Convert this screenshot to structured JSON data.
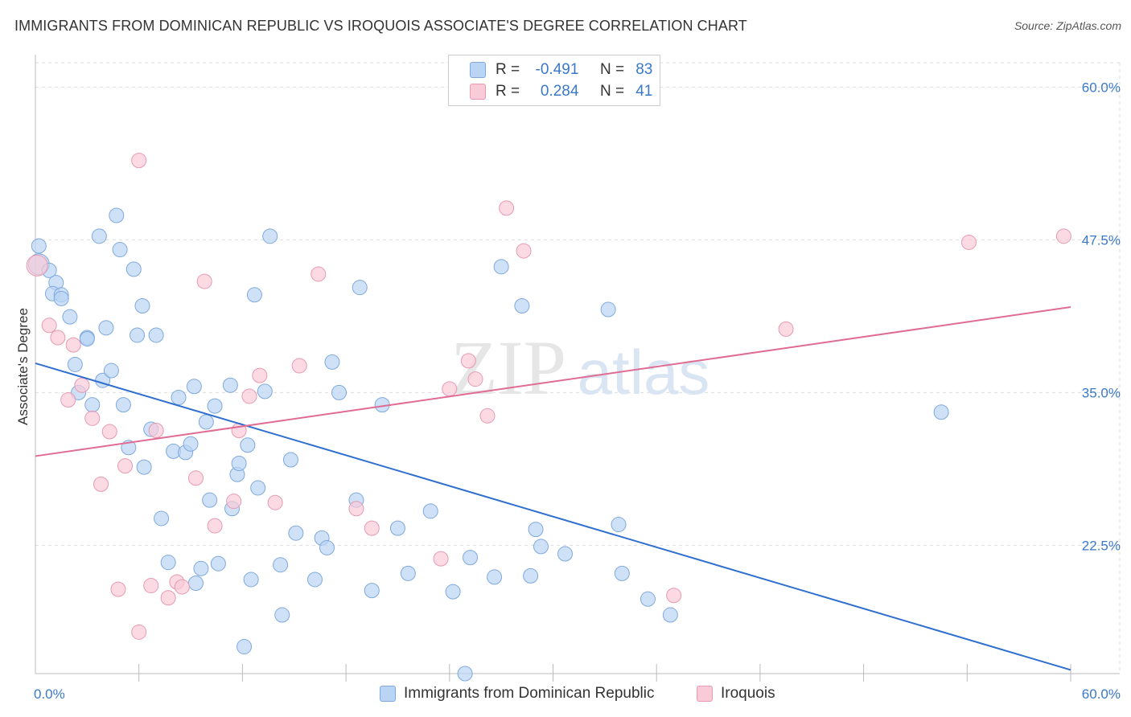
{
  "title": "IMMIGRANTS FROM DOMINICAN REPUBLIC VS IROQUOIS ASSOCIATE'S DEGREE CORRELATION CHART",
  "source": "Source: ZipAtlas.com",
  "colors": {
    "blue_fill": "#b9d4f4",
    "blue_stroke": "#7fa9dd",
    "blue_line": "#2f6fd0",
    "pink_fill": "#f9cbd8",
    "pink_stroke": "#e79ab2",
    "pink_line": "#e06c93",
    "axis_label": "#3a78c9",
    "grid": "#dddddd"
  },
  "legend": {
    "r_label": "R =",
    "n_label": "N =",
    "series": [
      {
        "r": "-0.491",
        "n": "83"
      },
      {
        "r": "0.284",
        "n": "41"
      }
    ]
  },
  "bottom_legend": [
    "Immigrants from Dominican Republic",
    "Iroquois"
  ],
  "watermark": {
    "zip": "ZIP",
    "atlas": "atlas"
  },
  "chart_data": {
    "type": "scatter",
    "title": "IMMIGRANTS FROM DOMINICAN REPUBLIC VS IROQUOIS ASSOCIATE'S DEGREE CORRELATION CHART",
    "xlabel": "",
    "ylabel": "Associate's Degree",
    "xlim": [
      0,
      60
    ],
    "ylim": [
      12,
      62
    ],
    "x_tick_labels": [
      "0.0%",
      "60.0%"
    ],
    "y_ticks": [
      22.5,
      35.0,
      47.5,
      60.0
    ],
    "y_tick_labels": [
      "22.5%",
      "35.0%",
      "47.5%",
      "60.0%"
    ],
    "series": [
      {
        "name": "Immigrants from Dominican Republic",
        "color": "blue",
        "trend": {
          "x": [
            0,
            60
          ],
          "y": [
            37.4,
            12.3
          ]
        },
        "points": [
          [
            0.2,
            45.5
          ],
          [
            0.2,
            47.0
          ],
          [
            0.8,
            45.0
          ],
          [
            1.2,
            44.0
          ],
          [
            1.0,
            43.1
          ],
          [
            1.5,
            43.0
          ],
          [
            1.5,
            42.7
          ],
          [
            2.0,
            41.2
          ],
          [
            2.3,
            37.3
          ],
          [
            2.5,
            35.0
          ],
          [
            3.0,
            39.5
          ],
          [
            3.0,
            39.4
          ],
          [
            3.3,
            34.0
          ],
          [
            3.7,
            47.8
          ],
          [
            3.9,
            36.0
          ],
          [
            4.1,
            40.3
          ],
          [
            4.4,
            36.8
          ],
          [
            4.7,
            49.5
          ],
          [
            4.9,
            46.7
          ],
          [
            5.1,
            34.0
          ],
          [
            5.4,
            30.5
          ],
          [
            5.7,
            45.1
          ],
          [
            5.9,
            39.7
          ],
          [
            6.2,
            42.1
          ],
          [
            6.3,
            28.9
          ],
          [
            6.7,
            32.0
          ],
          [
            7.0,
            39.7
          ],
          [
            7.3,
            24.7
          ],
          [
            7.7,
            21.1
          ],
          [
            8.0,
            30.2
          ],
          [
            8.3,
            34.6
          ],
          [
            8.7,
            30.1
          ],
          [
            9.0,
            30.8
          ],
          [
            9.2,
            35.5
          ],
          [
            9.3,
            19.4
          ],
          [
            9.6,
            20.6
          ],
          [
            9.9,
            32.6
          ],
          [
            10.1,
            26.2
          ],
          [
            10.4,
            33.9
          ],
          [
            10.6,
            21.0
          ],
          [
            11.3,
            35.6
          ],
          [
            11.4,
            25.5
          ],
          [
            11.7,
            28.3
          ],
          [
            11.8,
            29.2
          ],
          [
            12.1,
            14.2
          ],
          [
            12.3,
            30.7
          ],
          [
            12.5,
            19.7
          ],
          [
            12.7,
            43.0
          ],
          [
            12.9,
            27.2
          ],
          [
            13.3,
            35.1
          ],
          [
            13.6,
            47.8
          ],
          [
            14.2,
            20.9
          ],
          [
            14.3,
            16.8
          ],
          [
            14.8,
            29.5
          ],
          [
            15.1,
            23.5
          ],
          [
            16.2,
            19.7
          ],
          [
            16.6,
            23.1
          ],
          [
            16.9,
            22.3
          ],
          [
            17.2,
            37.5
          ],
          [
            17.6,
            35.0
          ],
          [
            18.6,
            26.2
          ],
          [
            18.8,
            43.6
          ],
          [
            19.5,
            18.8
          ],
          [
            20.1,
            34.0
          ],
          [
            21.0,
            23.9
          ],
          [
            21.6,
            20.2
          ],
          [
            22.9,
            25.3
          ],
          [
            24.2,
            18.7
          ],
          [
            24.9,
            12.0
          ],
          [
            25.2,
            21.5
          ],
          [
            26.6,
            19.9
          ],
          [
            27.0,
            45.3
          ],
          [
            28.2,
            42.1
          ],
          [
            28.7,
            20.0
          ],
          [
            29.0,
            23.8
          ],
          [
            29.3,
            22.4
          ],
          [
            30.7,
            21.8
          ],
          [
            33.2,
            41.8
          ],
          [
            33.8,
            24.2
          ],
          [
            34.0,
            20.2
          ],
          [
            35.5,
            18.1
          ],
          [
            36.8,
            16.8
          ],
          [
            52.5,
            33.4
          ]
        ]
      },
      {
        "name": "Iroquois",
        "color": "pink",
        "trend": {
          "x": [
            0,
            60
          ],
          "y": [
            29.8,
            42.0
          ]
        },
        "points": [
          [
            0.1,
            45.4
          ],
          [
            0.8,
            40.5
          ],
          [
            1.3,
            39.5
          ],
          [
            1.9,
            34.4
          ],
          [
            2.2,
            38.9
          ],
          [
            2.7,
            35.6
          ],
          [
            3.3,
            32.9
          ],
          [
            3.8,
            27.5
          ],
          [
            4.3,
            31.8
          ],
          [
            4.8,
            18.9
          ],
          [
            5.2,
            29.0
          ],
          [
            6.0,
            15.4
          ],
          [
            6.0,
            54.0
          ],
          [
            6.7,
            19.2
          ],
          [
            7.0,
            31.9
          ],
          [
            7.7,
            18.2
          ],
          [
            8.2,
            19.5
          ],
          [
            8.5,
            19.1
          ],
          [
            9.3,
            28.0
          ],
          [
            9.8,
            44.1
          ],
          [
            10.4,
            24.1
          ],
          [
            11.5,
            26.1
          ],
          [
            11.8,
            31.9
          ],
          [
            12.4,
            34.7
          ],
          [
            13.0,
            36.4
          ],
          [
            13.9,
            26.0
          ],
          [
            15.3,
            37.2
          ],
          [
            16.4,
            44.7
          ],
          [
            18.6,
            25.5
          ],
          [
            19.5,
            23.9
          ],
          [
            23.5,
            21.4
          ],
          [
            24.0,
            35.3
          ],
          [
            25.1,
            37.6
          ],
          [
            25.5,
            36.1
          ],
          [
            26.2,
            33.1
          ],
          [
            27.3,
            50.1
          ],
          [
            28.3,
            46.6
          ],
          [
            37.0,
            18.4
          ],
          [
            43.5,
            40.2
          ],
          [
            54.1,
            47.3
          ],
          [
            59.6,
            47.8
          ]
        ]
      }
    ]
  }
}
